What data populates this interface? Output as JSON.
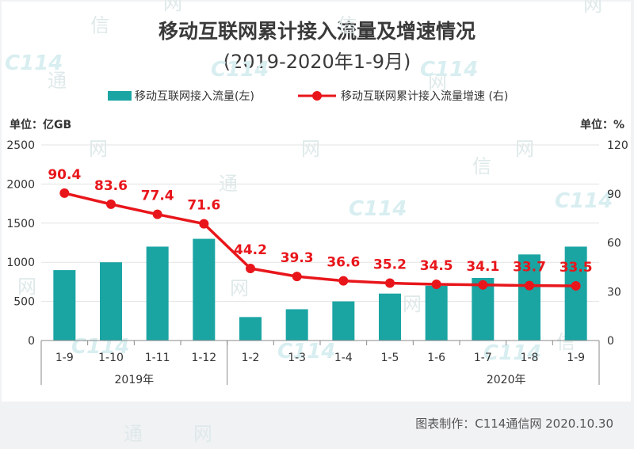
{
  "title": "移动互联网累计接入流量及增速情况",
  "subtitle": "(2019-2020年1-9月)",
  "credit": "图表制作：C114通信网  2020.10.30",
  "watermark": {
    "char1": "通",
    "char2": "信",
    "char3": "网",
    "logo": "C114"
  },
  "colors": {
    "bar": "#1aa5a3",
    "line": "#e8161b",
    "label": "#e8161b",
    "axis": "#333333",
    "grid": "#e3e3e3"
  },
  "chart_data": {
    "type": "bar+line",
    "categories": [
      "1-9",
      "1-10",
      "1-11",
      "1-12",
      "1-2",
      "1-3",
      "1-4",
      "1-5",
      "1-6",
      "1-7",
      "1-8",
      "1-9"
    ],
    "year_labels": [
      {
        "text": "2019年",
        "index": 1.5
      },
      {
        "text": "2020年",
        "index": 9.5
      }
    ],
    "series": [
      {
        "name": "移动互联网接入流量(左)",
        "type": "bar",
        "axis": "left",
        "values": [
          900,
          1000,
          1200,
          1300,
          300,
          400,
          500,
          600,
          700,
          800,
          1100,
          1200
        ]
      },
      {
        "name": "移动互联网累计接入流量增速 (右)",
        "type": "line",
        "axis": "right",
        "values": [
          90.4,
          83.6,
          77.4,
          71.6,
          44.2,
          39.3,
          36.6,
          35.2,
          34.5,
          34.1,
          33.7,
          33.5
        ]
      }
    ],
    "y_left": {
      "unit_label": "单位：亿GB",
      "min": 0,
      "max": 2500,
      "ticks": [
        0,
        500,
        1000,
        1500,
        2000,
        2500
      ]
    },
    "y_right": {
      "unit_label": "单位：%",
      "min": 0,
      "max": 120,
      "ticks": [
        0,
        30,
        60,
        90,
        120
      ]
    },
    "legend_position": "top-center",
    "grid": true
  }
}
